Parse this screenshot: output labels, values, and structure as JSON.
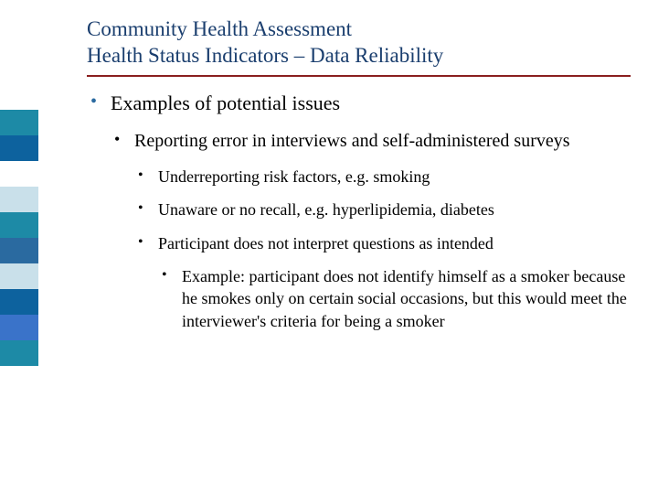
{
  "colors": {
    "title": "#1a3e6e",
    "rule": "#8a1e1e",
    "bullet_l1": "#2a6aa0",
    "text": "#000000",
    "background": "#ffffff"
  },
  "sidebar": {
    "block_width": 42,
    "block_height": 28,
    "blocks": [
      "#1d8aa6",
      "#0d629e",
      "#ffffff",
      "#c9e0ea",
      "#1d8aa6",
      "#2a6aa0",
      "#c9e0ea",
      "#0d629e",
      "#3a73c9",
      "#1d8aa6",
      "#ffffff"
    ]
  },
  "title": {
    "line1": "Community Health Assessment",
    "line2": "Health Status Indicators – Data Reliability",
    "fontsize": 23
  },
  "bullets": {
    "l1": "Examples of potential issues",
    "l2": "Reporting error in interviews and self-administered surveys",
    "l3a": "Underreporting risk factors, e.g. smoking",
    "l3b": "Unaware or no recall, e.g. hyperlipidemia, diabetes",
    "l3c": "Participant does not interpret questions as intended",
    "l4": "Example: participant does not identify himself as a smoker because he smokes only on certain social occasions, but this would meet the interviewer's criteria for being a smoker"
  },
  "fontsizes": {
    "l1": 22,
    "l2": 20,
    "l3": 18,
    "l4": 18
  }
}
